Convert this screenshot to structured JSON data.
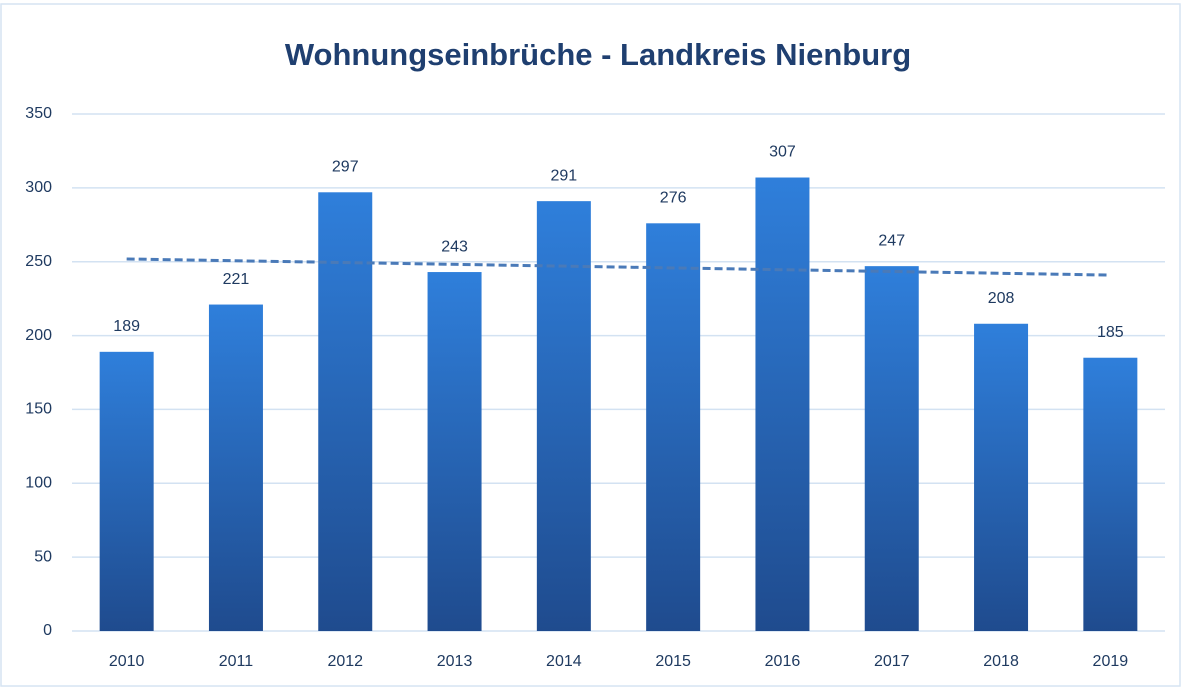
{
  "chart_data": {
    "type": "bar",
    "title": "Wohnungseinbrüche - Landkreis Nienburg",
    "categories": [
      "2010",
      "2011",
      "2012",
      "2013",
      "2014",
      "2015",
      "2016",
      "2017",
      "2018",
      "2019"
    ],
    "values": [
      189,
      221,
      297,
      243,
      291,
      276,
      307,
      247,
      208,
      185
    ],
    "color": "#2f7fdb",
    "ylim": [
      0,
      350
    ],
    "yticks": [
      0,
      50,
      100,
      150,
      200,
      250,
      300,
      350
    ],
    "grid": true,
    "trendline": "linear",
    "trendline_color": "#4a7ab8"
  }
}
